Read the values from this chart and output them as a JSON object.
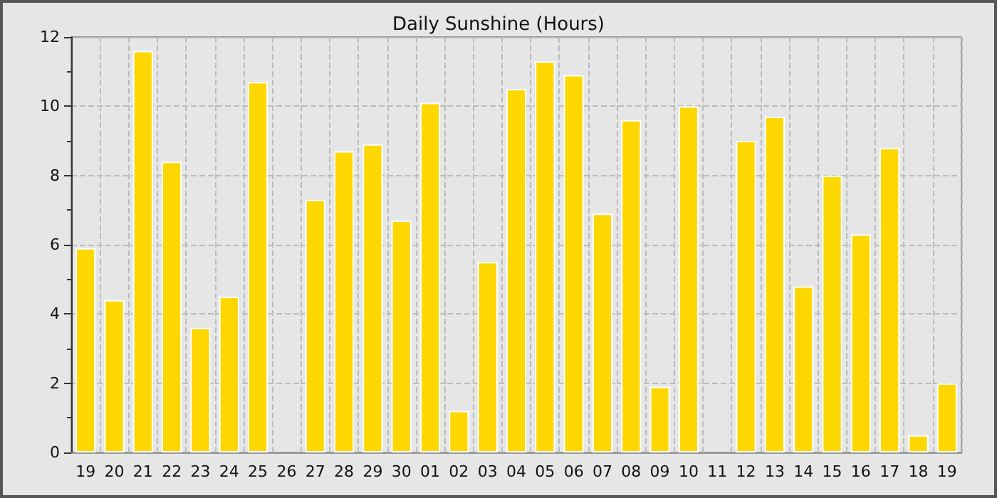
{
  "chart_data": {
    "type": "bar",
    "title": "Daily Sunshine (Hours)",
    "categories": [
      "19",
      "20",
      "21",
      "22",
      "23",
      "24",
      "25",
      "26",
      "27",
      "28",
      "29",
      "30",
      "01",
      "02",
      "03",
      "04",
      "05",
      "06",
      "07",
      "08",
      "09",
      "10",
      "11",
      "12",
      "13",
      "14",
      "15",
      "16",
      "17",
      "18",
      "19"
    ],
    "values": [
      5.9,
      4.4,
      11.6,
      8.4,
      3.6,
      4.5,
      10.7,
      0,
      7.3,
      8.7,
      8.9,
      6.7,
      10.1,
      1.2,
      5.5,
      10.5,
      11.3,
      10.9,
      6.9,
      9.6,
      1.9,
      10.0,
      0,
      9.0,
      9.7,
      4.8,
      8.0,
      6.3,
      8.8,
      0.5,
      2.0
    ],
    "color": "#ffd700",
    "ylim": [
      0,
      12
    ],
    "yticks": [
      0,
      2,
      4,
      6,
      8,
      10,
      12
    ],
    "grid": true
  }
}
